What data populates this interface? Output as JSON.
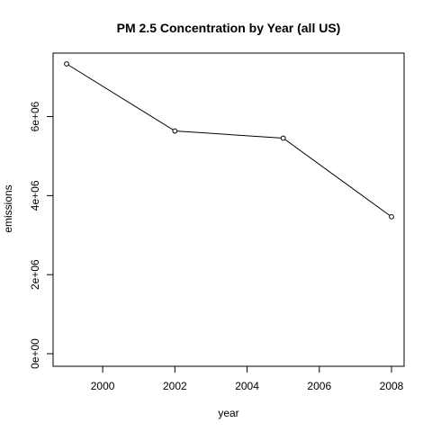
{
  "chart_data": {
    "type": "line",
    "title": "PM 2.5 Concentration by Year (all US)",
    "xlabel": "year",
    "ylabel": "emissions",
    "x": [
      1999,
      2002,
      2005,
      2008
    ],
    "series": [
      {
        "values": [
          7332967,
          5635780,
          5454703,
          3464206
        ]
      }
    ],
    "markers": "open-circle",
    "xlim": [
      1999,
      2008
    ],
    "ylim": [
      0,
      7332967
    ],
    "x_ticks": [
      2000,
      2002,
      2004,
      2006,
      2008
    ],
    "x_tick_labels": [
      "2000",
      "2002",
      "2004",
      "2006",
      "2008"
    ],
    "y_ticks": [
      0,
      2000000,
      4000000,
      6000000
    ],
    "y_tick_labels": [
      "0e+00",
      "2e+06",
      "4e+06",
      "6e+06"
    ],
    "grid": false,
    "legend": "none",
    "colors": {
      "line": "#000000",
      "marker_fill": "#ffffff",
      "background": "#ffffff"
    }
  }
}
